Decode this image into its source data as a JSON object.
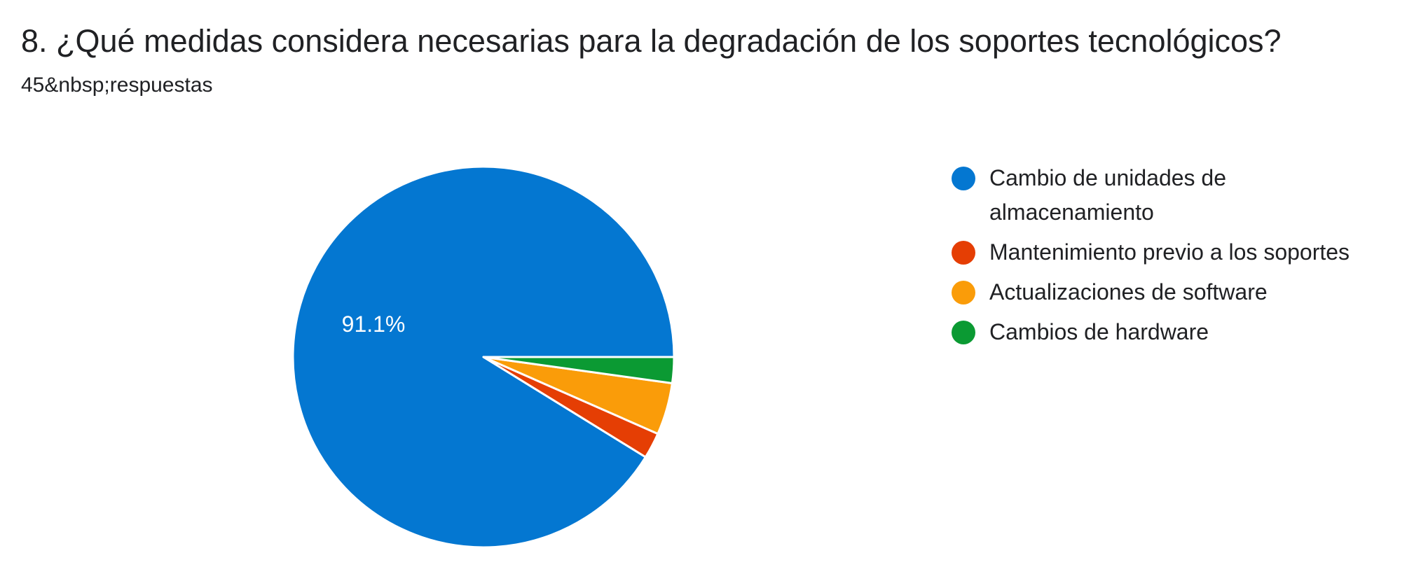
{
  "question": {
    "title": "8. ¿Qué medidas considera necesarias para la degradación de los soportes tecnológicos?",
    "responses": "45&nbsp;respuestas"
  },
  "chart_data": {
    "type": "pie",
    "labels": [
      "Cambio de unidades de almacenamiento",
      "Mantenimiento previo a los soportes",
      "Actualizaciones de software",
      "Cambios de hardware"
    ],
    "values": [
      91.1,
      2.2,
      4.4,
      2.2
    ],
    "colors": [
      "#0477d1",
      "#e53e04",
      "#fa9c09",
      "#0b9a33"
    ],
    "slice_labels": [
      "91.1%",
      "",
      "",
      ""
    ],
    "start_direction": "3 o'clock",
    "order": "counterclockwise",
    "legend_position": "right"
  }
}
